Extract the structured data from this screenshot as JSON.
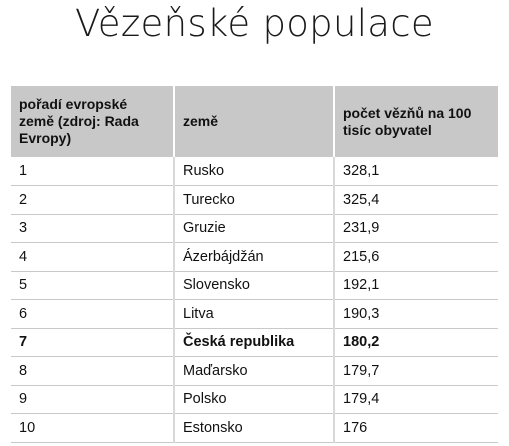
{
  "title": "Vězeňské populace",
  "table": {
    "headers": [
      "pořadí evropské země (zdroj: Rada Evropy)",
      "země",
      "počet vězňů na 100 tisíc obyvatel"
    ],
    "rows": [
      {
        "rank": "1",
        "country": "Rusko",
        "rate": "328,1",
        "highlight": false
      },
      {
        "rank": "2",
        "country": "Turecko",
        "rate": "325,4",
        "highlight": false
      },
      {
        "rank": "3",
        "country": "Gruzie",
        "rate": "231,9",
        "highlight": false
      },
      {
        "rank": "4",
        "country": "Ázerbájdžán",
        "rate": "215,6",
        "highlight": false
      },
      {
        "rank": "5",
        "country": "Slovensko",
        "rate": "192,1",
        "highlight": false
      },
      {
        "rank": "6",
        "country": "Litva",
        "rate": "190,3",
        "highlight": false
      },
      {
        "rank": "7",
        "country": "Česká republika",
        "rate": "180,2",
        "highlight": true
      },
      {
        "rank": "8",
        "country": "Maďarsko",
        "rate": "179,7",
        "highlight": false
      },
      {
        "rank": "9",
        "country": "Polsko",
        "rate": "179,4",
        "highlight": false
      },
      {
        "rank": "10",
        "country": "Estonsko",
        "rate": "176",
        "highlight": false
      }
    ]
  },
  "colors": {
    "header_background": "#c8c8c8",
    "text": "#111111"
  }
}
